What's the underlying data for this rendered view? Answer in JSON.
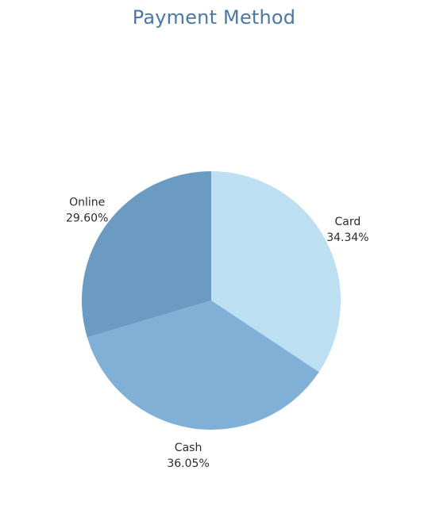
{
  "chart_data": {
    "type": "pie",
    "title": "Payment Method",
    "start_angle_deg": 0,
    "direction": "clockwise",
    "slices": [
      {
        "label": "Card",
        "value": 34.34,
        "display": "34.34%",
        "color": "#bcdff1"
      },
      {
        "label": "Cash",
        "value": 36.05,
        "display": "36.05%",
        "color": "#81b0d6"
      },
      {
        "label": "Online",
        "value": 29.6,
        "display": "29.60%",
        "color": "#6b9bc3"
      }
    ]
  }
}
